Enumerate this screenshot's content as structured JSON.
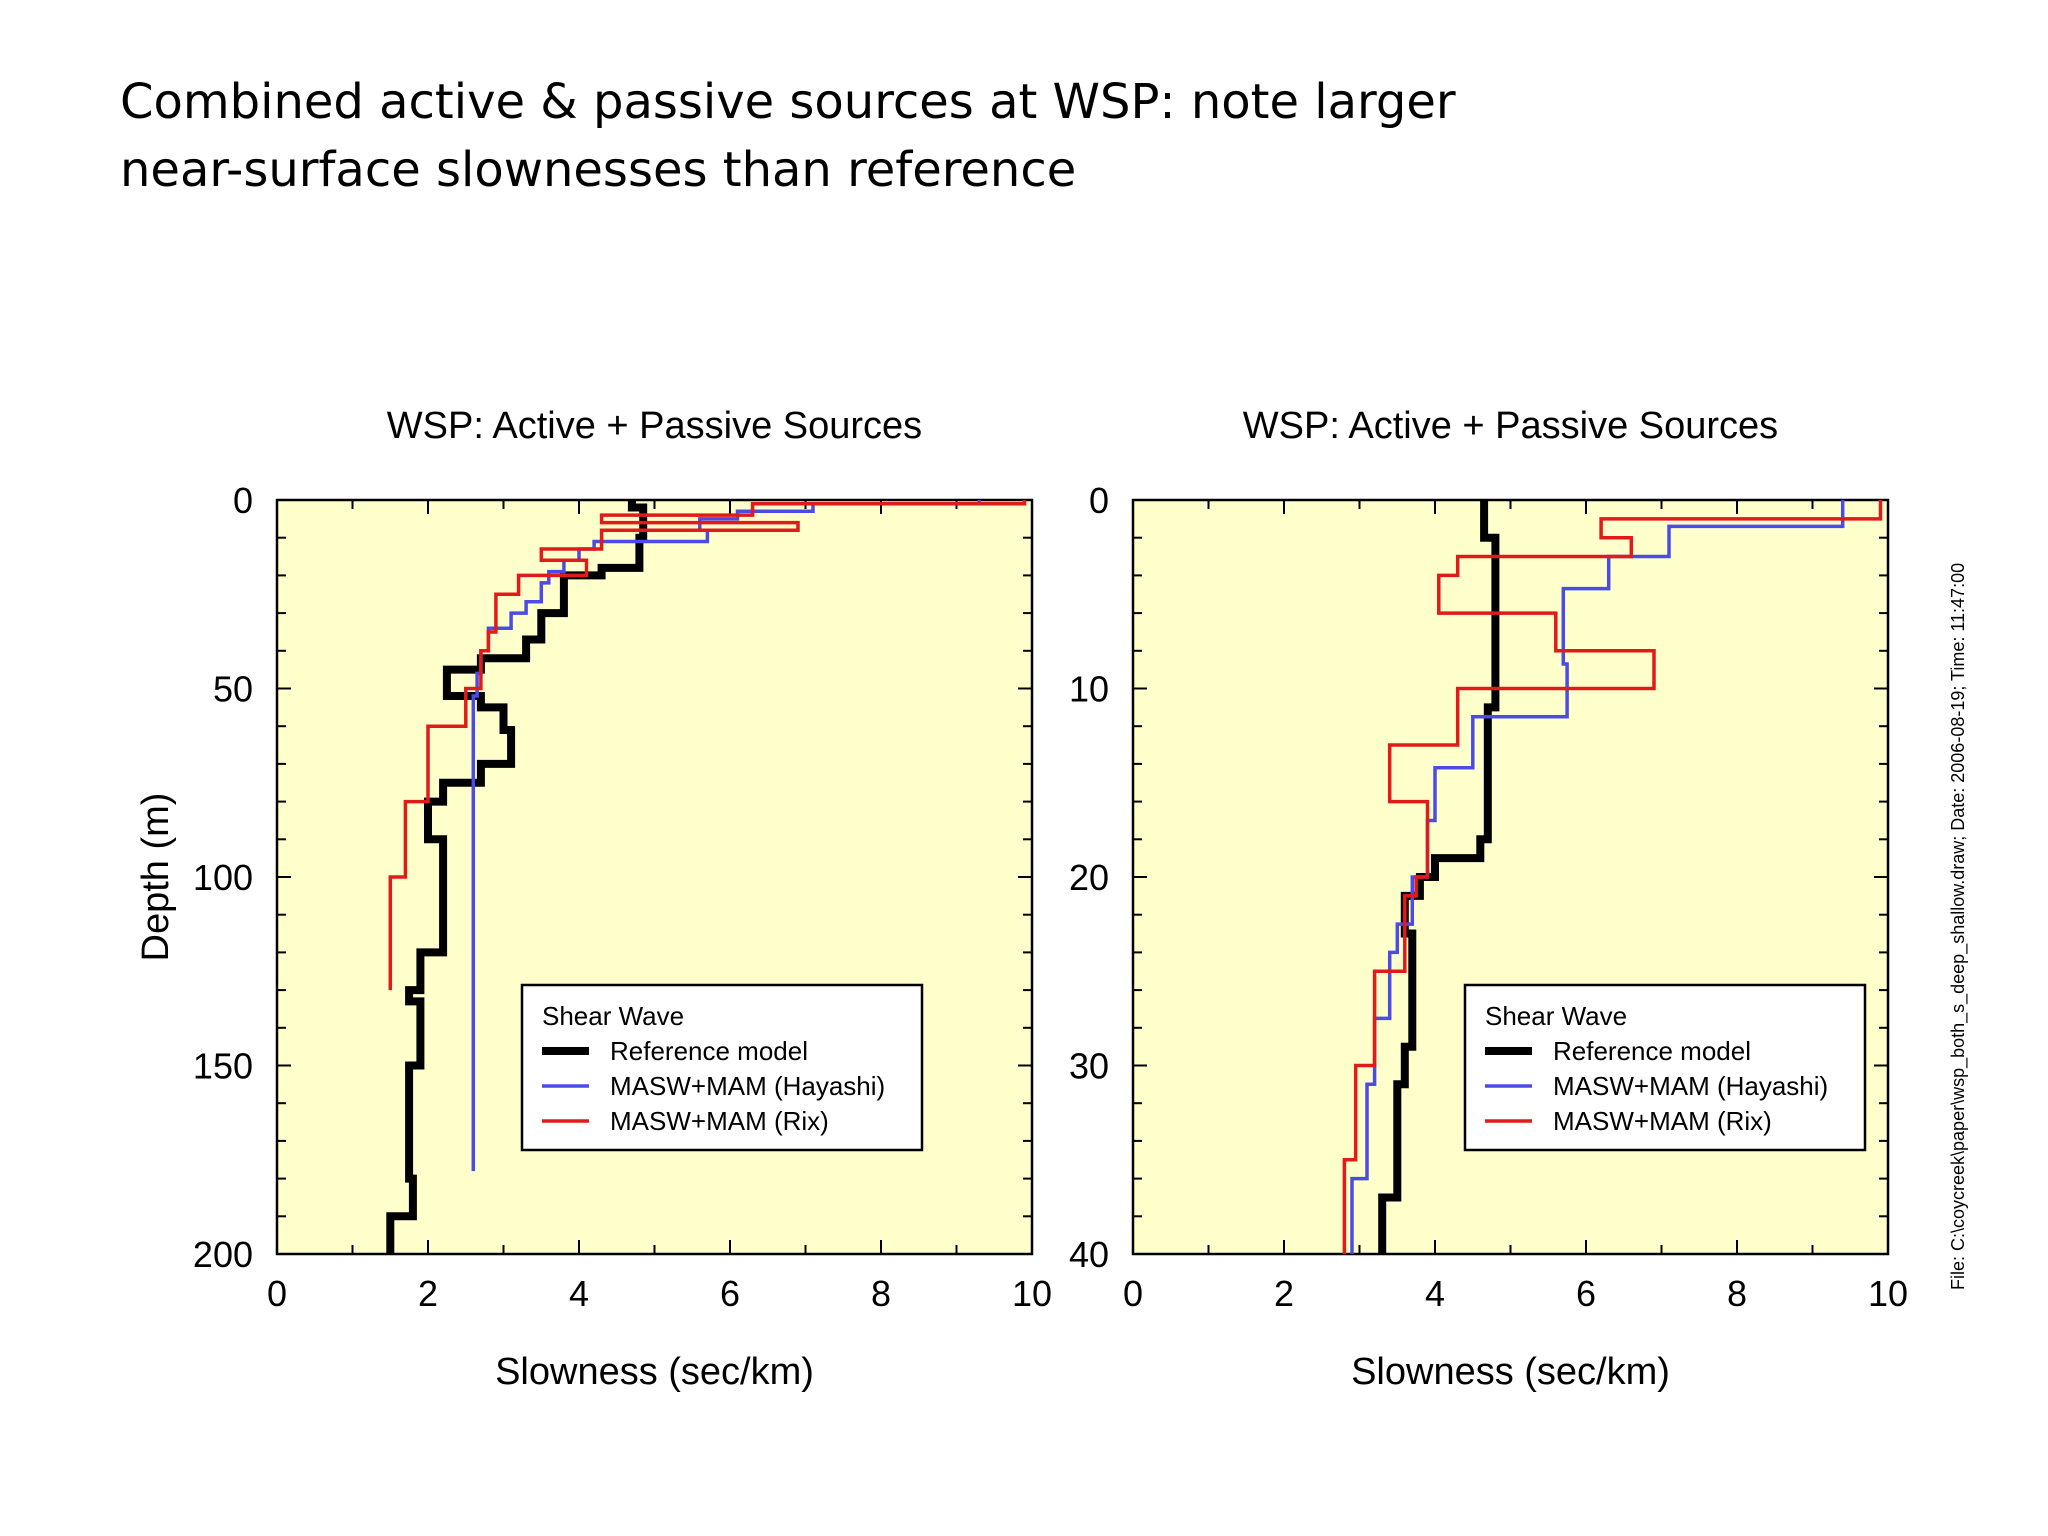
{
  "slide": {
    "title_line1": "Combined active & passive sources at WSP:  note larger",
    "title_line2": "near-surface slownesses than reference",
    "file_note": "File: C:\\coycreek\\paper\\wsp_both_s_deep_shallow.draw;   Date: 2006-08-19;  Time: 11:47:00"
  },
  "colors": {
    "plot_background": "#FFFFCC",
    "reference": "#000000",
    "hayashi": "#4B4BE6",
    "rix": "#E11A1A"
  },
  "chart_data": [
    {
      "type": "line",
      "title": "WSP: Active + Passive Sources",
      "xlabel": "Slowness (sec/km)",
      "ylabel": "Depth (m)",
      "xlim": [
        0,
        10
      ],
      "ylim": [
        0,
        200
      ],
      "y_inverted": true,
      "xticks": [
        0,
        2,
        4,
        6,
        8,
        10
      ],
      "yticks": [
        0,
        50,
        100,
        150,
        200
      ],
      "grid": false,
      "legend": {
        "title": "Shear Wave",
        "placement": "bottom-right"
      },
      "series": [
        {
          "name": "Reference model",
          "points": [
            [
              4.7,
              0
            ],
            [
              4.7,
              2
            ],
            [
              4.85,
              2
            ],
            [
              4.85,
              10
            ],
            [
              4.8,
              10
            ],
            [
              4.8,
              18
            ],
            [
              4.3,
              18
            ],
            [
              4.3,
              20
            ],
            [
              3.8,
              20
            ],
            [
              3.8,
              30
            ],
            [
              3.5,
              30
            ],
            [
              3.5,
              37
            ],
            [
              3.3,
              37
            ],
            [
              3.3,
              42
            ],
            [
              2.7,
              42
            ],
            [
              2.7,
              45
            ],
            [
              2.25,
              45
            ],
            [
              2.25,
              52
            ],
            [
              2.7,
              52
            ],
            [
              2.7,
              55
            ],
            [
              3.0,
              55
            ],
            [
              3.0,
              61
            ],
            [
              3.1,
              61
            ],
            [
              3.1,
              70
            ],
            [
              2.7,
              70
            ],
            [
              2.7,
              75
            ],
            [
              2.2,
              75
            ],
            [
              2.2,
              80
            ],
            [
              2.0,
              80
            ],
            [
              2.0,
              90
            ],
            [
              2.2,
              90
            ],
            [
              2.2,
              120
            ],
            [
              1.9,
              120
            ],
            [
              1.9,
              130
            ],
            [
              1.75,
              130
            ],
            [
              1.75,
              133
            ],
            [
              1.9,
              133
            ],
            [
              1.9,
              150
            ],
            [
              1.75,
              150
            ],
            [
              1.75,
              180
            ],
            [
              1.8,
              180
            ],
            [
              1.8,
              190
            ],
            [
              1.5,
              190
            ],
            [
              1.5,
              200
            ]
          ]
        },
        {
          "name": "MASW+MAM (Hayashi)",
          "points": [
            [
              9.3,
              0
            ],
            [
              9.3,
              1
            ],
            [
              7.1,
              1
            ],
            [
              7.1,
              3
            ],
            [
              6.1,
              3
            ],
            [
              6.1,
              5
            ],
            [
              5.6,
              5
            ],
            [
              5.6,
              8
            ],
            [
              5.7,
              8
            ],
            [
              5.7,
              11
            ],
            [
              4.2,
              11
            ],
            [
              4.2,
              13
            ],
            [
              4.0,
              13
            ],
            [
              4.0,
              16
            ],
            [
              3.8,
              16
            ],
            [
              3.8,
              19
            ],
            [
              3.6,
              19
            ],
            [
              3.6,
              22
            ],
            [
              3.5,
              22
            ],
            [
              3.5,
              27
            ],
            [
              3.3,
              27
            ],
            [
              3.3,
              30
            ],
            [
              3.1,
              30
            ],
            [
              3.1,
              34
            ],
            [
              2.8,
              34
            ],
            [
              2.8,
              40
            ],
            [
              2.7,
              40
            ],
            [
              2.7,
              46
            ],
            [
              2.65,
              46
            ],
            [
              2.65,
              52
            ],
            [
              2.6,
              52
            ],
            [
              2.6,
              60
            ],
            [
              2.6,
              178
            ]
          ]
        },
        {
          "name": "MASW+MAM (Rix)",
          "points": [
            [
              9.9,
              0
            ],
            [
              9.9,
              1
            ],
            [
              6.3,
              1
            ],
            [
              6.3,
              4
            ],
            [
              4.3,
              4
            ],
            [
              4.3,
              6
            ],
            [
              6.9,
              6
            ],
            [
              6.9,
              8
            ],
            [
              4.3,
              8
            ],
            [
              4.3,
              13
            ],
            [
              3.5,
              13
            ],
            [
              3.5,
              16
            ],
            [
              4.1,
              16
            ],
            [
              4.1,
              20
            ],
            [
              3.2,
              20
            ],
            [
              3.2,
              25
            ],
            [
              2.9,
              25
            ],
            [
              2.9,
              30
            ],
            [
              2.9,
              35
            ],
            [
              2.8,
              35
            ],
            [
              2.8,
              40
            ],
            [
              2.7,
              40
            ],
            [
              2.7,
              50
            ],
            [
              2.5,
              50
            ],
            [
              2.5,
              60
            ],
            [
              2.0,
              60
            ],
            [
              2.0,
              80
            ],
            [
              1.7,
              80
            ],
            [
              1.7,
              100
            ],
            [
              1.5,
              100
            ],
            [
              1.5,
              130
            ]
          ]
        }
      ]
    },
    {
      "type": "line",
      "title": "WSP: Active + Passive Sources",
      "xlabel": "Slowness (sec/km)",
      "ylabel": "",
      "xlim": [
        0,
        10
      ],
      "ylim": [
        0,
        40
      ],
      "y_inverted": true,
      "xticks": [
        0,
        2,
        4,
        6,
        8,
        10
      ],
      "yticks": [
        0,
        10,
        20,
        30,
        40
      ],
      "grid": false,
      "legend": {
        "title": "Shear Wave",
        "placement": "bottom-right"
      },
      "series": [
        {
          "name": "Reference model",
          "points": [
            [
              4.65,
              0
            ],
            [
              4.65,
              2
            ],
            [
              4.8,
              2
            ],
            [
              4.8,
              10
            ],
            [
              4.8,
              11
            ],
            [
              4.7,
              11
            ],
            [
              4.7,
              18
            ],
            [
              4.6,
              18
            ],
            [
              4.6,
              19
            ],
            [
              4.0,
              19
            ],
            [
              4.0,
              20
            ],
            [
              3.8,
              20
            ],
            [
              3.8,
              21
            ],
            [
              3.6,
              21
            ],
            [
              3.6,
              23
            ],
            [
              3.7,
              23
            ],
            [
              3.7,
              29
            ],
            [
              3.6,
              29
            ],
            [
              3.6,
              31
            ],
            [
              3.5,
              31
            ],
            [
              3.5,
              37
            ],
            [
              3.3,
              37
            ],
            [
              3.3,
              40
            ]
          ]
        },
        {
          "name": "MASW+MAM (Hayashi)",
          "points": [
            [
              9.4,
              0
            ],
            [
              9.4,
              1.4
            ],
            [
              7.1,
              1.4
            ],
            [
              7.1,
              3
            ],
            [
              6.3,
              3
            ],
            [
              6.3,
              4.7
            ],
            [
              5.7,
              4.7
            ],
            [
              5.7,
              8.7
            ],
            [
              5.75,
              8.7
            ],
            [
              5.75,
              11.5
            ],
            [
              4.5,
              11.5
            ],
            [
              4.5,
              14.2
            ],
            [
              4.0,
              14.2
            ],
            [
              4.0,
              17
            ],
            [
              3.9,
              17
            ],
            [
              3.9,
              20
            ],
            [
              3.7,
              20
            ],
            [
              3.7,
              22.5
            ],
            [
              3.5,
              22.5
            ],
            [
              3.5,
              24
            ],
            [
              3.4,
              24
            ],
            [
              3.4,
              27.5
            ],
            [
              3.2,
              27.5
            ],
            [
              3.2,
              31
            ],
            [
              3.1,
              31
            ],
            [
              3.1,
              36
            ],
            [
              2.9,
              36
            ],
            [
              2.9,
              40
            ]
          ]
        },
        {
          "name": "MASW+MAM (Rix)",
          "points": [
            [
              9.9,
              0
            ],
            [
              9.9,
              1
            ],
            [
              6.2,
              1
            ],
            [
              6.2,
              2
            ],
            [
              6.6,
              2
            ],
            [
              6.6,
              3
            ],
            [
              4.3,
              3
            ],
            [
              4.3,
              4
            ],
            [
              4.05,
              4
            ],
            [
              4.05,
              6
            ],
            [
              5.6,
              6
            ],
            [
              5.6,
              8
            ],
            [
              6.9,
              8
            ],
            [
              6.9,
              10
            ],
            [
              4.3,
              10
            ],
            [
              4.3,
              13
            ],
            [
              3.4,
              13
            ],
            [
              3.4,
              16
            ],
            [
              3.9,
              16
            ],
            [
              3.9,
              20
            ],
            [
              3.75,
              20
            ],
            [
              3.75,
              21
            ],
            [
              3.6,
              21
            ],
            [
              3.6,
              25
            ],
            [
              3.2,
              25
            ],
            [
              3.2,
              30
            ],
            [
              2.95,
              30
            ],
            [
              2.95,
              35
            ],
            [
              2.8,
              35
            ],
            [
              2.8,
              40
            ]
          ]
        }
      ]
    }
  ]
}
